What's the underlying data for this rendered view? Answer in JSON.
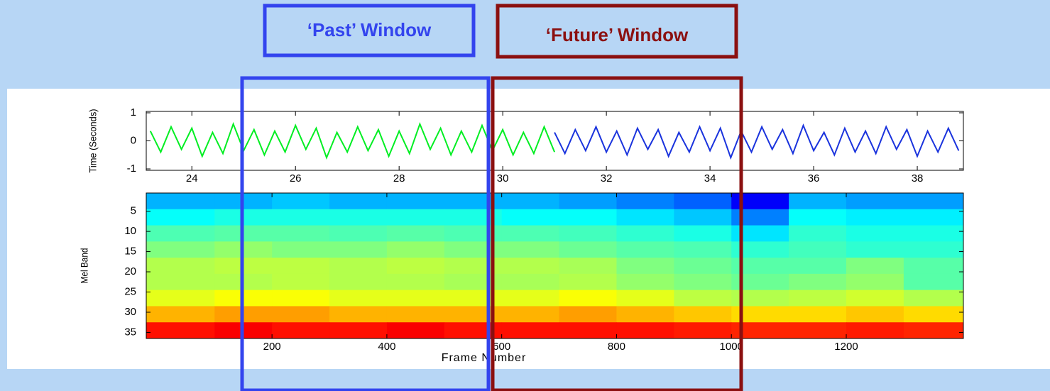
{
  "annotations": [
    "‘Past’ Window",
    "‘Future’ Window"
  ],
  "chart_data": [
    {
      "type": "line",
      "ylabel": "Time (Seconds)",
      "xlim": [
        23.12,
        38.89
      ],
      "xticks": [
        24,
        26,
        28,
        30,
        32,
        34,
        36,
        38
      ],
      "ylim": [
        -1.05,
        1.05
      ],
      "yticks": [
        -1,
        0,
        1
      ],
      "series": [
        {
          "color": "#00ee22",
          "x": [
            23.2,
            23.4,
            23.6,
            23.8,
            24.0,
            24.2,
            24.4,
            24.6,
            24.8,
            25.0,
            25.2,
            25.4,
            25.6,
            25.8,
            26.0,
            26.2,
            26.4,
            26.6,
            26.8,
            27.0,
            27.2,
            27.4,
            27.6,
            27.8,
            28.0,
            28.2,
            28.4,
            28.6,
            28.8,
            29.0,
            29.2,
            29.4,
            29.6,
            29.8,
            30.0,
            30.2,
            30.4,
            30.6,
            30.8,
            31.0
          ],
          "values": [
            0.35,
            -0.4,
            0.5,
            -0.3,
            0.45,
            -0.55,
            0.3,
            -0.45,
            0.6,
            -0.35,
            0.4,
            -0.5,
            0.35,
            -0.4,
            0.55,
            -0.3,
            0.45,
            -0.6,
            0.3,
            -0.4,
            0.5,
            -0.35,
            0.4,
            -0.55,
            0.35,
            -0.45,
            0.6,
            -0.3,
            0.45,
            -0.5,
            0.35,
            -0.4,
            0.55,
            -0.35,
            0.4,
            -0.5,
            0.3,
            -0.45,
            0.5,
            -0.4
          ]
        },
        {
          "color": "#1a33dd",
          "x": [
            31.0,
            31.2,
            31.4,
            31.6,
            31.8,
            32.0,
            32.2,
            32.4,
            32.6,
            32.8,
            33.0,
            33.2,
            33.4,
            33.6,
            33.8,
            34.0,
            34.2,
            34.4,
            34.6,
            34.8,
            35.0,
            35.2,
            35.4,
            35.6,
            35.8,
            36.0,
            36.2,
            36.4,
            36.6,
            36.8,
            37.0,
            37.2,
            37.4,
            37.6,
            37.8,
            38.0,
            38.2,
            38.4,
            38.6,
            38.8
          ],
          "values": [
            0.3,
            -0.45,
            0.4,
            -0.35,
            0.5,
            -0.4,
            0.35,
            -0.5,
            0.45,
            -0.3,
            0.4,
            -0.55,
            0.3,
            -0.4,
            0.5,
            -0.35,
            0.45,
            -0.6,
            0.35,
            -0.4,
            0.5,
            -0.3,
            0.4,
            -0.45,
            0.55,
            -0.35,
            0.3,
            -0.5,
            0.45,
            -0.4,
            0.35,
            -0.45,
            0.5,
            -0.3,
            0.4,
            -0.55,
            0.35,
            -0.4,
            0.45,
            -0.35
          ]
        }
      ]
    },
    {
      "type": "heatmap",
      "ylabel": "Mel Band",
      "xlabel": "Frame Number",
      "xlim": [
        -19,
        1404
      ],
      "xticks": [
        200,
        400,
        600,
        800,
        1000,
        1200
      ],
      "ylim": [
        0.5,
        36.5
      ],
      "y_reversed": true,
      "yticks": [
        5,
        10,
        15,
        20,
        25,
        30,
        35
      ],
      "colormap": "jet",
      "zlim": [
        0,
        1
      ],
      "x_bins": [
        -19,
        100,
        200,
        300,
        400,
        500,
        600,
        700,
        800,
        900,
        1000,
        1100,
        1200,
        1300,
        1404
      ],
      "y_bins": [
        0.5,
        4.5,
        8.5,
        12.5,
        16.5,
        20.5,
        24.5,
        28.5,
        32.5,
        36.5
      ],
      "z": [
        [
          0.3,
          0.3,
          0.32,
          0.3,
          0.3,
          0.3,
          0.3,
          0.28,
          0.25,
          0.22,
          0.12,
          0.3,
          0.28,
          0.28
        ],
        [
          0.38,
          0.4,
          0.4,
          0.4,
          0.4,
          0.4,
          0.38,
          0.38,
          0.35,
          0.32,
          0.25,
          0.38,
          0.36,
          0.36
        ],
        [
          0.45,
          0.46,
          0.46,
          0.45,
          0.46,
          0.45,
          0.45,
          0.44,
          0.42,
          0.4,
          0.35,
          0.42,
          0.4,
          0.4
        ],
        [
          0.5,
          0.52,
          0.5,
          0.5,
          0.52,
          0.5,
          0.5,
          0.48,
          0.46,
          0.45,
          0.42,
          0.44,
          0.42,
          0.42
        ],
        [
          0.55,
          0.56,
          0.56,
          0.55,
          0.56,
          0.55,
          0.55,
          0.54,
          0.5,
          0.48,
          0.46,
          0.46,
          0.5,
          0.46
        ],
        [
          0.55,
          0.55,
          0.56,
          0.55,
          0.55,
          0.54,
          0.54,
          0.55,
          0.52,
          0.5,
          0.48,
          0.5,
          0.52,
          0.46
        ],
        [
          0.6,
          0.62,
          0.62,
          0.6,
          0.6,
          0.6,
          0.6,
          0.62,
          0.6,
          0.56,
          0.55,
          0.56,
          0.58,
          0.55
        ],
        [
          0.7,
          0.72,
          0.72,
          0.7,
          0.7,
          0.7,
          0.7,
          0.72,
          0.7,
          0.68,
          0.66,
          0.66,
          0.68,
          0.66
        ],
        [
          0.86,
          0.88,
          0.86,
          0.86,
          0.88,
          0.86,
          0.86,
          0.86,
          0.86,
          0.85,
          0.84,
          0.84,
          0.85,
          0.84
        ]
      ]
    }
  ]
}
